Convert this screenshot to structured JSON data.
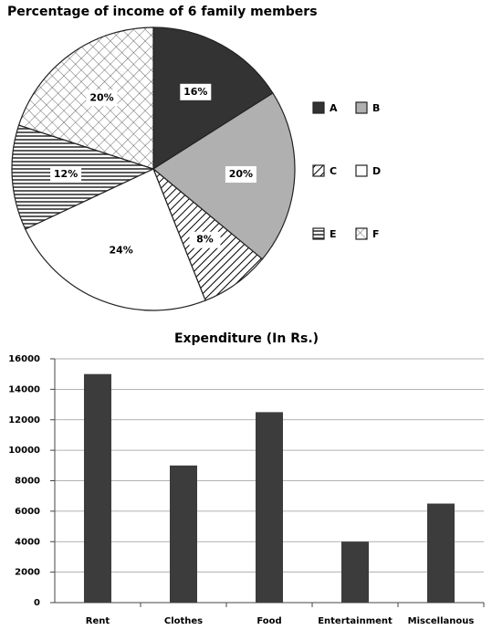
{
  "chart_data": [
    {
      "type": "pie",
      "title": "Percentage of income of 6 family members",
      "categories": [
        "A",
        "B",
        "C",
        "D",
        "E",
        "F"
      ],
      "values": [
        16,
        20,
        8,
        24,
        12,
        20
      ],
      "value_labels": [
        "16%",
        "20%",
        "8%",
        "24%",
        "12%",
        "20%"
      ],
      "colors": [
        "#333333",
        "#b0b0b0",
        "#ffffff",
        "#ffffff",
        "#ffffff",
        "#ffffff"
      ],
      "patterns": [
        "solid",
        "solid",
        "diagonal",
        "solid",
        "horizontal",
        "crosshatch"
      ]
    },
    {
      "type": "bar",
      "title": "Expenditure (In Rs.)",
      "categories": [
        "Rent",
        "Clothes",
        "Food",
        "Entertainment",
        "Miscellanous"
      ],
      "values": [
        15000,
        9000,
        12500,
        4000,
        6500
      ],
      "color": "#3c3c3c",
      "ylim": [
        0,
        16000
      ],
      "yticks": [
        0,
        2000,
        4000,
        6000,
        8000,
        10000,
        12000,
        14000,
        16000
      ],
      "grid": true
    }
  ]
}
